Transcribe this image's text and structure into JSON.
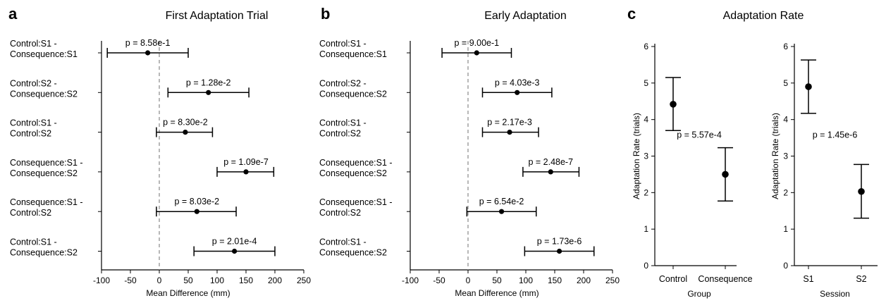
{
  "chart_data": [
    {
      "type": "scatter",
      "panel": "a",
      "title": "First Adaptation Trial",
      "xlabel": "Mean Difference (mm)",
      "xlim": [
        -100,
        250
      ],
      "xticks": [
        -100,
        -50,
        0,
        50,
        100,
        150,
        200,
        250
      ],
      "reference_line": 0,
      "rows": [
        {
          "label1": "Control:S1 -",
          "label2": "Consequence:S1",
          "mean": -20,
          "low": -90,
          "high": 50,
          "p": "p = 8.58e-1"
        },
        {
          "label1": "Control:S2 -",
          "label2": "Consequence:S2",
          "mean": 85,
          "low": 15,
          "high": 155,
          "p": "p = 1.28e-2"
        },
        {
          "label1": "Control:S1 -",
          "label2": "Control:S2",
          "mean": 45,
          "low": -5,
          "high": 92,
          "p": "p =  8.30e-2"
        },
        {
          "label1": "Consequence:S1 -",
          "label2": "Consequence:S2",
          "mean": 150,
          "low": 100,
          "high": 198,
          "p": "p = 1.09e-7"
        },
        {
          "label1": "Consequence:S1 -",
          "label2": "Control:S2",
          "mean": 65,
          "low": -5,
          "high": 133,
          "p": "p = 8.03e-2"
        },
        {
          "label1": "Control:S1 -",
          "label2": "Consequence:S2",
          "mean": 130,
          "low": 60,
          "high": 200,
          "p": "p = 2.01e-4"
        }
      ]
    },
    {
      "type": "scatter",
      "panel": "b",
      "title": "Early Adaptation",
      "xlabel": "Mean Difference (mm)",
      "xlim": [
        -100,
        250
      ],
      "xticks": [
        -100,
        -50,
        0,
        50,
        100,
        150,
        200,
        250
      ],
      "reference_line": 0,
      "rows": [
        {
          "label1": "Control:S1 -",
          "label2": "Consequence:S1",
          "mean": 15,
          "low": -45,
          "high": 75,
          "p": "p = 9.00e-1"
        },
        {
          "label1": "Control:S2 -",
          "label2": "Consequence:S2",
          "mean": 85,
          "low": 25,
          "high": 145,
          "p": "p = 4.03e-3"
        },
        {
          "label1": "Control:S1 -",
          "label2": "Control:S2",
          "mean": 72,
          "low": 25,
          "high": 122,
          "p": "p = 2.17e-3"
        },
        {
          "label1": "Consequence:S1 -",
          "label2": "Consequence:S2",
          "mean": 143,
          "low": 95,
          "high": 192,
          "p": "p = 2.48e-7"
        },
        {
          "label1": "Consequence:S1 -",
          "label2": "Control:S2",
          "mean": 58,
          "low": -2,
          "high": 118,
          "p": "p = 6.54e-2"
        },
        {
          "label1": "Control:S1 -",
          "label2": "Consequence:S2",
          "mean": 158,
          "low": 98,
          "high": 218,
          "p": "p = 1.73e-6"
        }
      ]
    },
    {
      "type": "scatter",
      "panel": "c",
      "title": "Adaptation Rate",
      "subplots": [
        {
          "xlabel": "Group",
          "ylabel": "Adaptation Rate (trials)",
          "ylim": [
            0,
            6
          ],
          "yticks": [
            0,
            1,
            2,
            3,
            4,
            5,
            6
          ],
          "categories": [
            "Control",
            "Consequence"
          ],
          "values": [
            4.42,
            2.5
          ],
          "lows": [
            3.7,
            1.77
          ],
          "highs": [
            5.15,
            3.23
          ],
          "p": "p = 5.57e-4"
        },
        {
          "xlabel": "Session",
          "ylabel": "Adaptation Rate (trials)",
          "ylim": [
            0,
            6
          ],
          "yticks": [
            0,
            1,
            2,
            3,
            4,
            5,
            6
          ],
          "categories": [
            "S1",
            "S2"
          ],
          "values": [
            4.9,
            2.03
          ],
          "lows": [
            4.17,
            1.3
          ],
          "highs": [
            5.63,
            2.77
          ],
          "p": "p = 1.45e-6"
        }
      ]
    }
  ]
}
